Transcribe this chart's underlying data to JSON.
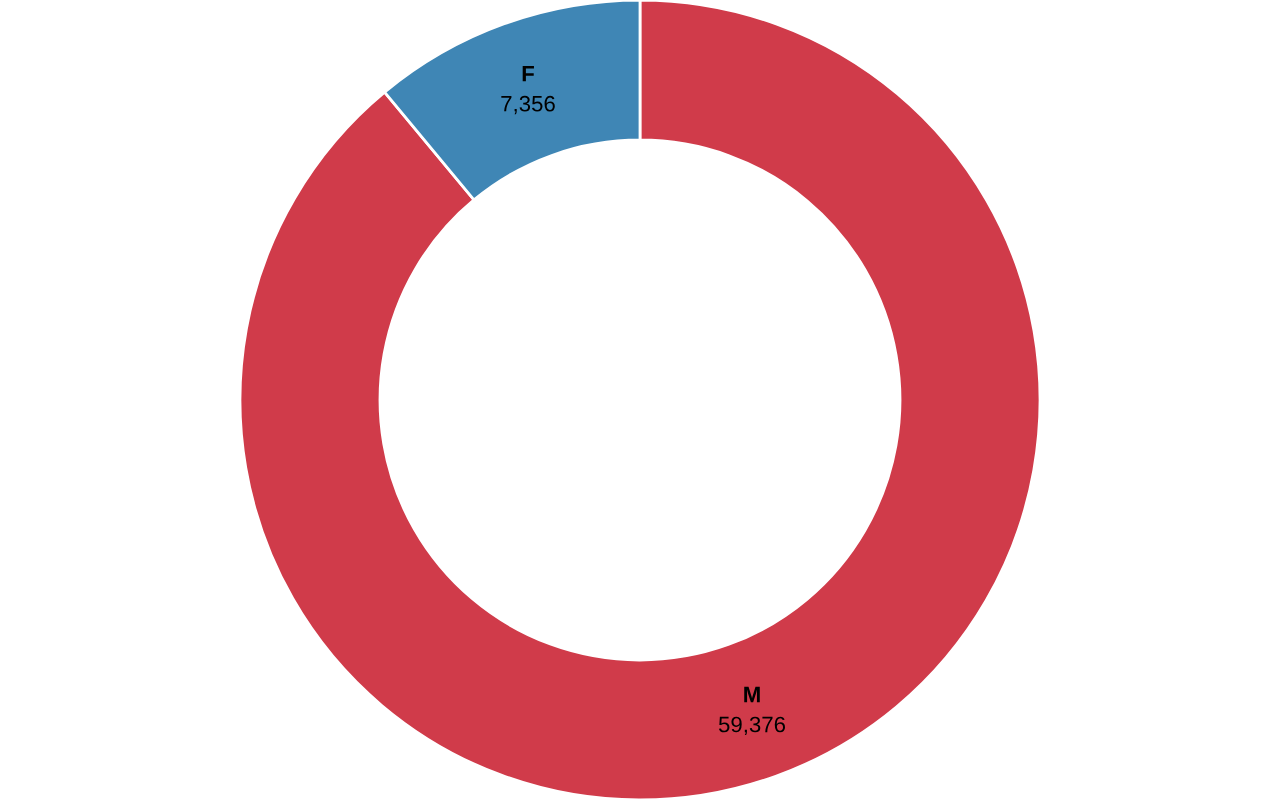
{
  "chart_data": {
    "type": "donut",
    "categories": [
      "M",
      "F"
    ],
    "values": [
      59376,
      7356
    ],
    "colors": [
      "#d03b4a",
      "#3f86b5"
    ],
    "value_labels": [
      "59,376",
      "7,356"
    ]
  }
}
